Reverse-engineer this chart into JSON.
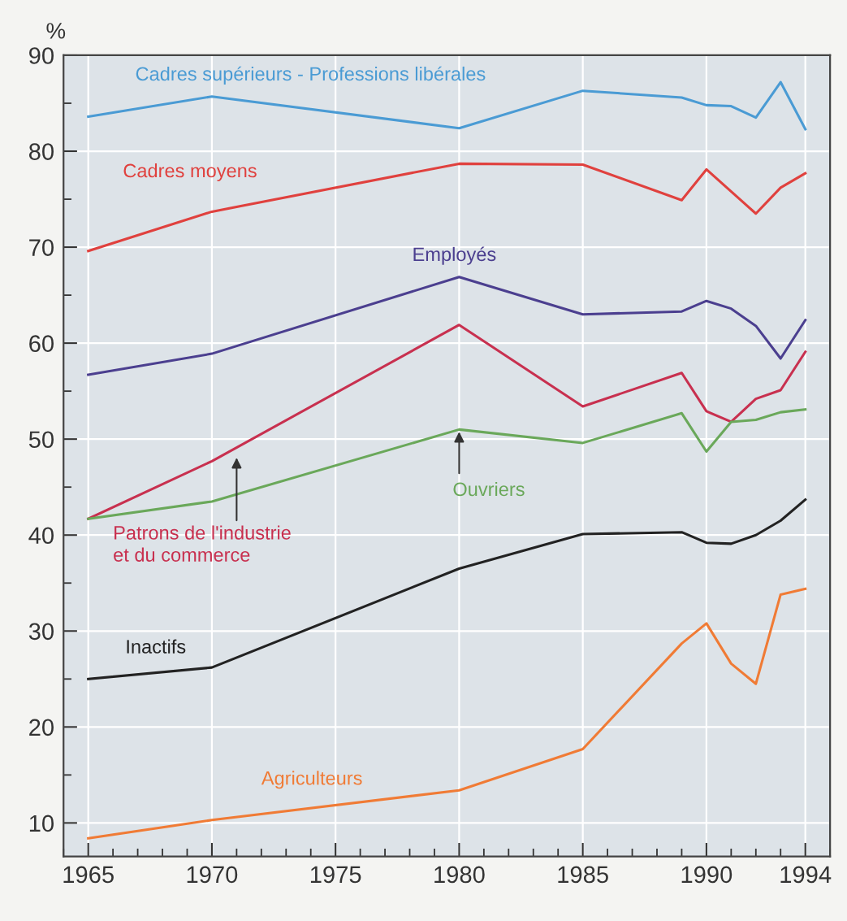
{
  "chart_data": {
    "type": "line",
    "ylabel": "%",
    "xlim": [
      1964,
      1995
    ],
    "xticks": [
      1965,
      1970,
      1975,
      1980,
      1985,
      1990,
      1994
    ],
    "ylim": [
      6.5,
      90
    ],
    "yticks": [
      10,
      20,
      30,
      40,
      50,
      60,
      70,
      80,
      90
    ],
    "grid": true,
    "legend": false,
    "marker": "none",
    "line_style": "solid",
    "series": [
      {
        "name": "Cadres supérieurs - Professions libérales",
        "color": "#4a9bd4",
        "x": [
          1965,
          1970,
          1980,
          1985,
          1989,
          1990,
          1991,
          1992,
          1993,
          1994
        ],
        "values": [
          83.6,
          85.7,
          82.4,
          86.3,
          85.6,
          84.8,
          84.7,
          83.5,
          87.2,
          82.3
        ]
      },
      {
        "name": "Cadres moyens",
        "color": "#e0413e",
        "x": [
          1965,
          1970,
          1980,
          1985,
          1989,
          1990,
          1992,
          1993,
          1994
        ],
        "values": [
          69.6,
          73.7,
          78.7,
          78.6,
          74.9,
          78.1,
          73.5,
          76.2,
          77.7
        ]
      },
      {
        "name": "Employés",
        "color": "#4b3f8f",
        "x": [
          1965,
          1970,
          1980,
          1985,
          1989,
          1990,
          1991,
          1992,
          1993,
          1994
        ],
        "values": [
          56.7,
          58.9,
          66.9,
          63.0,
          63.3,
          64.4,
          63.6,
          61.8,
          58.4,
          62.4
        ]
      },
      {
        "name": "Patrons de l'industrie\net du commerce",
        "color": "#c8304f",
        "x": [
          1965,
          1970,
          1980,
          1985,
          1989,
          1990,
          1991,
          1992,
          1993,
          1994
        ],
        "values": [
          41.7,
          47.7,
          61.9,
          53.4,
          56.9,
          52.9,
          51.8,
          54.2,
          55.1,
          59.1
        ]
      },
      {
        "name": "Ouvriers",
        "color": "#6aa85a",
        "x": [
          1965,
          1970,
          1980,
          1985,
          1989,
          1990,
          1991,
          1992,
          1993,
          1994
        ],
        "values": [
          41.7,
          43.5,
          51.0,
          49.6,
          52.7,
          48.7,
          51.8,
          52.0,
          52.8,
          53.1
        ]
      },
      {
        "name": "Inactifs",
        "color": "#222222",
        "x": [
          1965,
          1970,
          1980,
          1985,
          1989,
          1990,
          1991,
          1992,
          1993,
          1994
        ],
        "values": [
          25.0,
          26.2,
          36.5,
          40.1,
          40.3,
          39.2,
          39.1,
          40.0,
          41.5,
          43.7
        ]
      },
      {
        "name": "Agriculteurs",
        "color": "#f07b35",
        "x": [
          1965,
          1970,
          1980,
          1985,
          1989,
          1990,
          1991,
          1992,
          1993,
          1994
        ],
        "values": [
          8.4,
          10.3,
          13.4,
          17.7,
          28.7,
          30.8,
          26.6,
          24.5,
          33.8,
          34.4
        ]
      }
    ]
  }
}
